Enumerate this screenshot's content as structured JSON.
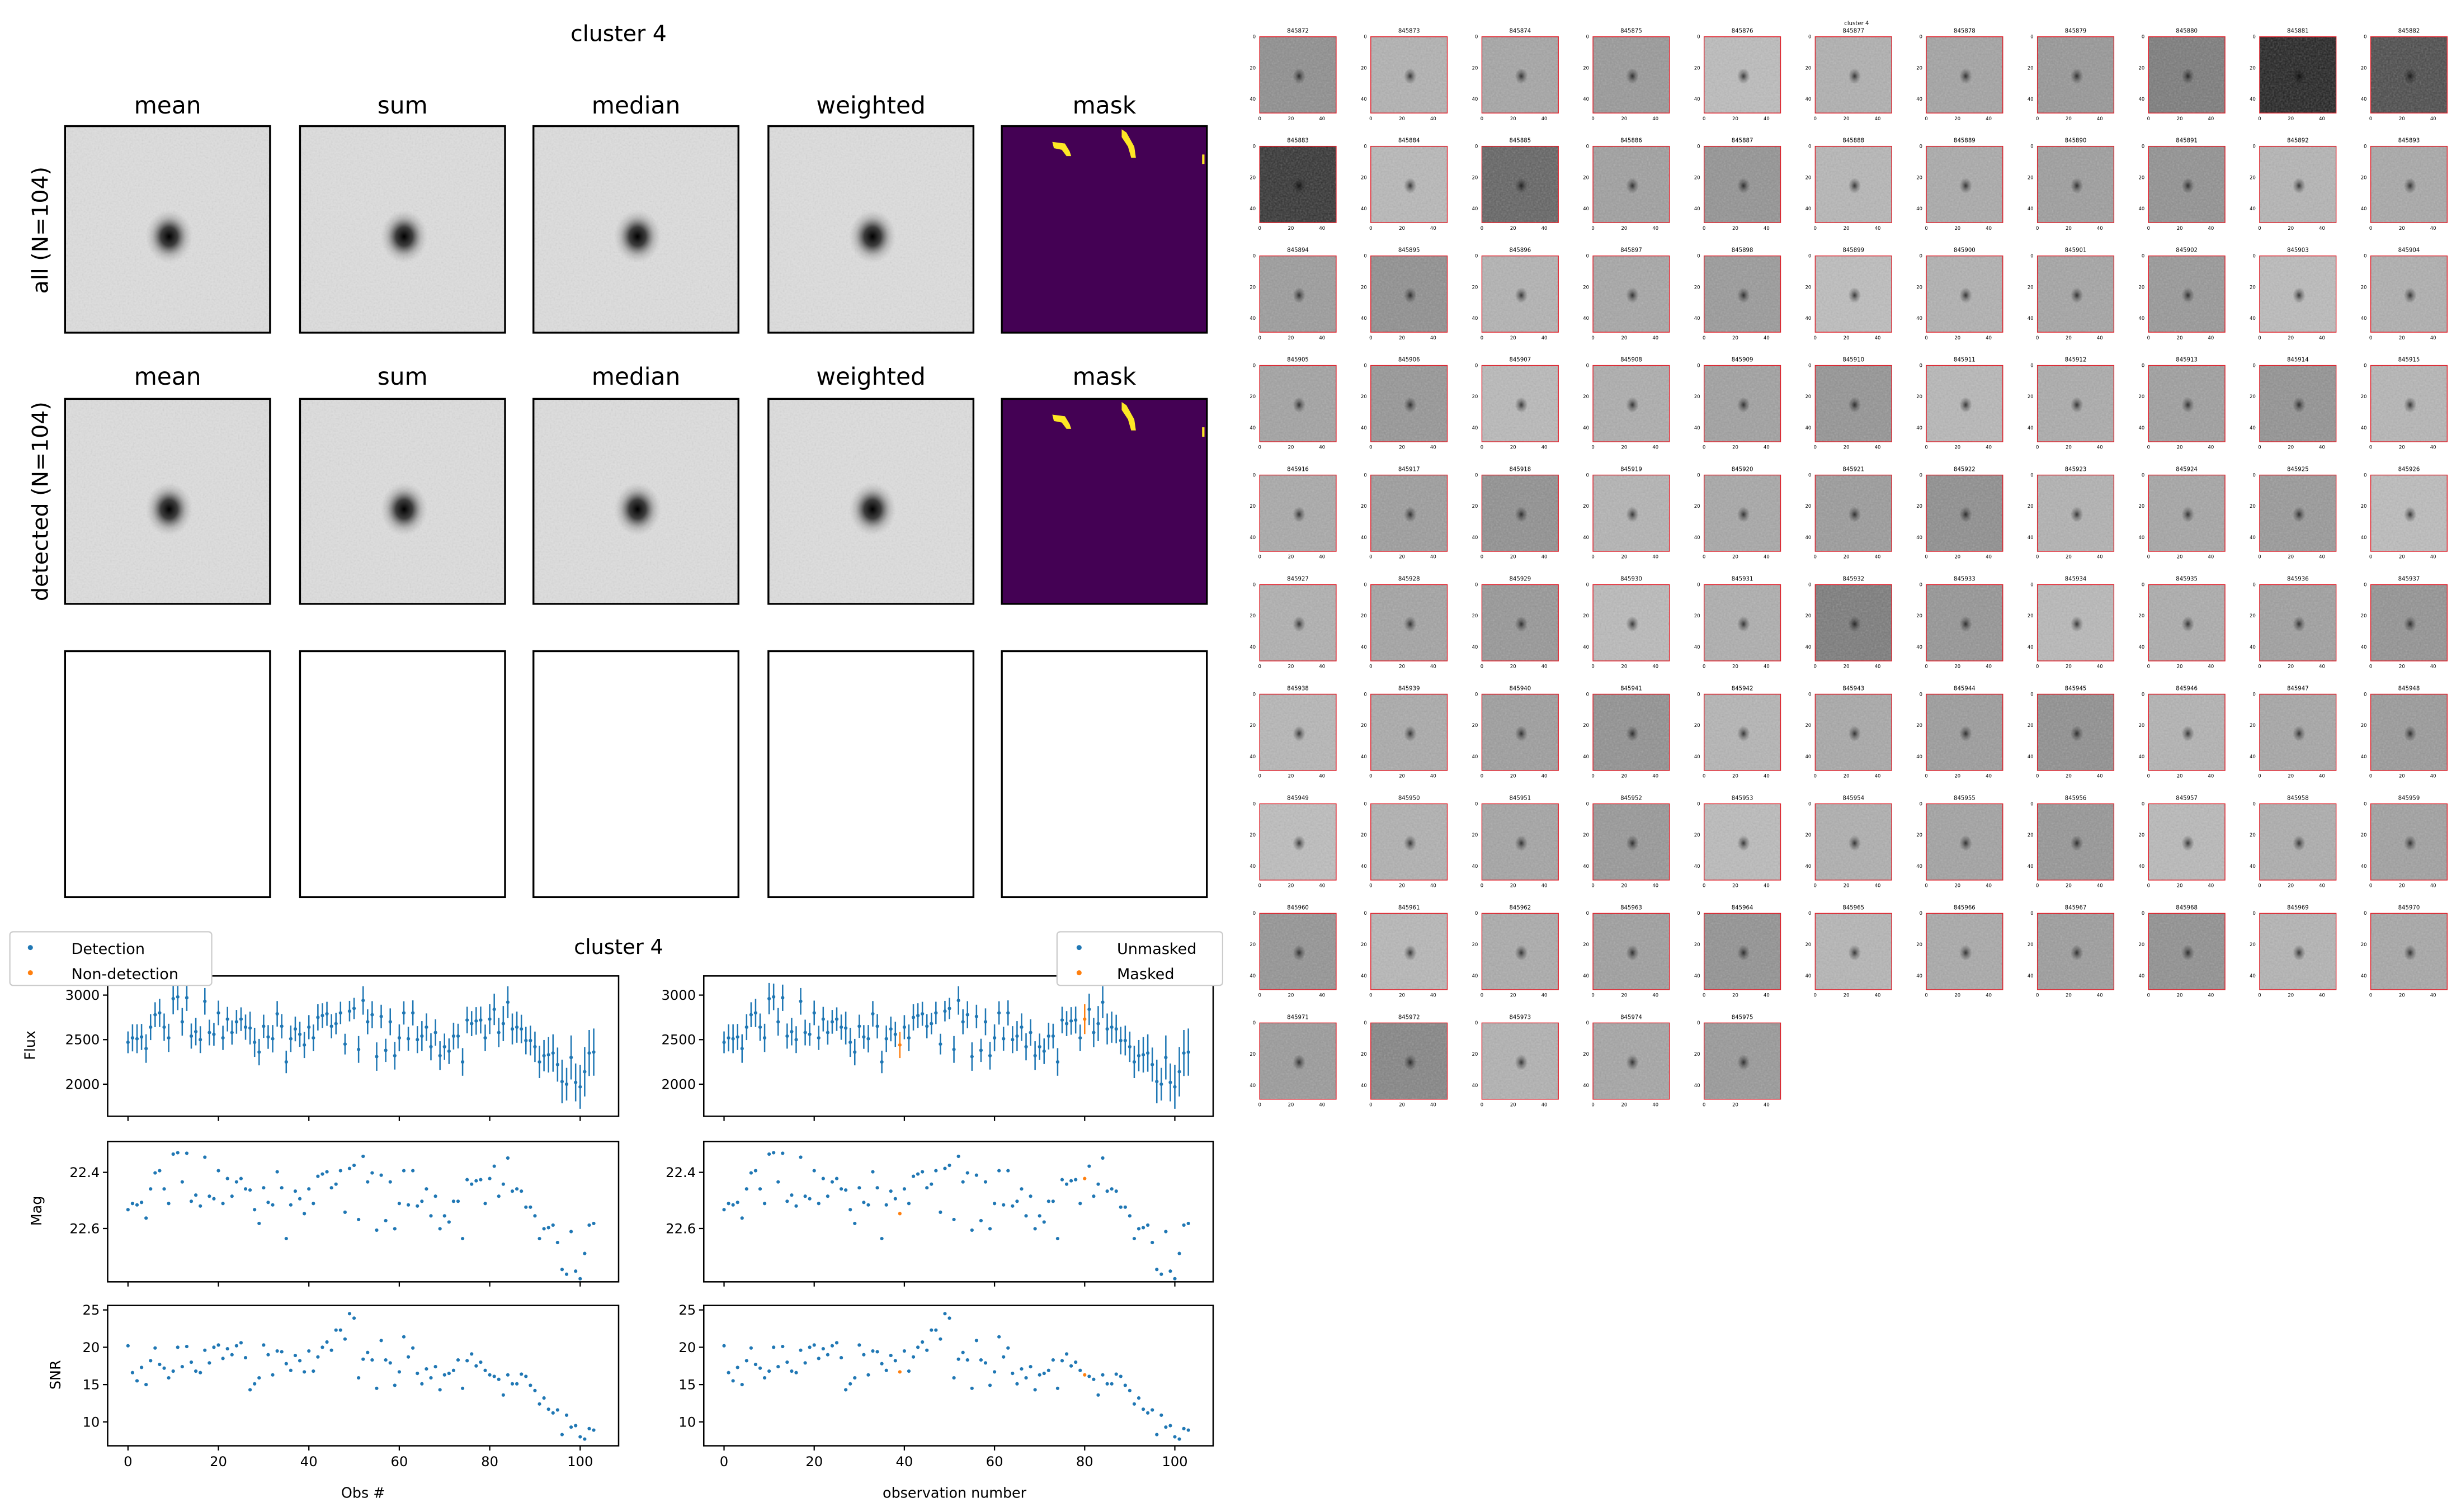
{
  "stack_panel": {
    "title": "cluster 4",
    "column_titles": [
      "mean",
      "sum",
      "median",
      "weighted",
      "mask"
    ],
    "row_labels": [
      "all (N=104)",
      "detected (N=104)"
    ]
  },
  "lightcurve": {
    "title": "cluster 4",
    "legend_left": [
      "Detection",
      "Non-detection"
    ],
    "legend_right": [
      "Unmasked",
      "Masked"
    ],
    "ylabels": [
      "Flux",
      "Mag",
      "SNR"
    ],
    "xlabel_left": "Obs #",
    "xlabel_right": "observation number"
  },
  "thumbnails": {
    "title": "cluster 4",
    "axis_ticks": [
      "0",
      "20",
      "40"
    ],
    "ids": [
      "845872",
      "845873",
      "845874",
      "845875",
      "845876",
      "845877",
      "845878",
      "845879",
      "845880",
      "845881",
      "845882",
      "845883",
      "845884",
      "845885",
      "845886",
      "845887",
      "845888",
      "845889",
      "845890",
      "845891",
      "845892",
      "845893",
      "845894",
      "845895",
      "845896",
      "845897",
      "845898",
      "845899",
      "845900",
      "845901",
      "845902",
      "845903",
      "845904",
      "845905",
      "845906",
      "845907",
      "845908",
      "845909",
      "845910",
      "845911",
      "845912",
      "845913",
      "845914",
      "845915",
      "845916",
      "845917",
      "845918",
      "845919",
      "845920",
      "845921",
      "845922",
      "845923",
      "845924",
      "845925",
      "845926",
      "845927",
      "845928",
      "845929",
      "845930",
      "845931",
      "845932",
      "845933",
      "845934",
      "845935",
      "845936",
      "845937",
      "845938",
      "845939",
      "845940",
      "845941",
      "845942",
      "845943",
      "845944",
      "845945",
      "845946",
      "845947",
      "845948",
      "845949",
      "845950",
      "845951",
      "845952",
      "845953",
      "845954",
      "845955",
      "845956",
      "845957",
      "845958",
      "845959",
      "845960",
      "845961",
      "845962",
      "845963",
      "845964",
      "845965",
      "845966",
      "845967",
      "845968",
      "845969",
      "845970",
      "845971",
      "845972",
      "845973",
      "845974",
      "845975"
    ]
  },
  "colors": {
    "unmasked": "#1f77b4",
    "masked": "#ff7f0e",
    "mask_bg": "#440154",
    "mask_fg": "#fde725",
    "thumb_frame": "#e0202a"
  },
  "chart_data": {
    "type": "scatter",
    "x_ticks": [
      "0",
      "20",
      "40",
      "60",
      "80",
      "100"
    ],
    "xlim": [
      -4.5,
      108.5
    ],
    "masked_indices": [
      39,
      80
    ],
    "panels": [
      {
        "name": "flux",
        "ylabel": "Flux",
        "ylim": [
          1640,
          3215
        ],
        "inverted": false,
        "y_ticks": [
          "2000",
          "2500",
          "3000"
        ],
        "errorbars": true
      },
      {
        "name": "mag",
        "ylabel": "Mag",
        "ylim": [
          22.79,
          22.29
        ],
        "inverted": true,
        "y_ticks": [
          "22.4",
          "22.6"
        ],
        "errorbars": false
      },
      {
        "name": "snr",
        "ylabel": "SNR",
        "ylim": [
          6.8,
          25.6
        ],
        "inverted": false,
        "y_ticks": [
          "10",
          "15",
          "20",
          "25"
        ],
        "errorbars": false
      }
    ],
    "flux": [
      2470,
      2520,
      2510,
      2530,
      2400,
      2640,
      2780,
      2800,
      2640,
      2520,
      2960,
      2980,
      2700,
      2970,
      2540,
      2590,
      2500,
      2930,
      2580,
      2560,
      2800,
      2520,
      2730,
      2580,
      2700,
      2730,
      2640,
      2630,
      2470,
      2360,
      2650,
      2530,
      2510,
      2790,
      2650,
      2250,
      2510,
      2620,
      2560,
      2440,
      2640,
      2520,
      2750,
      2770,
      2790,
      2650,
      2680,
      2800,
      2450,
      2820,
      2850,
      2390,
      2940,
      2700,
      2780,
      2310,
      2760,
      2380,
      2700,
      2320,
      2520,
      2800,
      2510,
      2800,
      2500,
      2540,
      2640,
      2420,
      2580,
      2320,
      2420,
      2370,
      2540,
      2540,
      2250,
      2720,
      2680,
      2710,
      2720,
      2520,
      2730,
      2840,
      2580,
      2680,
      2920,
      2620,
      2640,
      2620,
      2490,
      2490,
      2420,
      2250,
      2320,
      2330,
      2350,
      2220,
      2030,
      2000,
      2300,
      2020,
      1970,
      2140,
      2350,
      2360
    ],
    "snr": [
      20.2,
      16.6,
      15.5,
      17.3,
      15.0,
      18.2,
      19.9,
      17.7,
      17.2,
      15.9,
      16.8,
      20.0,
      17.4,
      20.1,
      18.0,
      16.8,
      16.6,
      19.6,
      17.9,
      20.0,
      20.3,
      18.5,
      19.8,
      19.0,
      20.2,
      20.6,
      18.6,
      14.3,
      15.1,
      15.9,
      20.3,
      19.0,
      16.3,
      19.5,
      19.4,
      17.8,
      16.9,
      18.9,
      18.2,
      16.7,
      19.5,
      16.8,
      18.7,
      20.0,
      20.7,
      19.6,
      22.3,
      22.3,
      21.1,
      24.5,
      23.9,
      15.9,
      18.4,
      19.3,
      18.3,
      14.5,
      20.9,
      18.3,
      17.9,
      14.9,
      16.7,
      21.4,
      18.7,
      19.9,
      16.5,
      15.1,
      17.1,
      15.9,
      17.4,
      14.3,
      16.3,
      16.5,
      16.9,
      18.3,
      14.5,
      18.2,
      19.1,
      17.5,
      18.0,
      16.9,
      16.3,
      16.1,
      15.7,
      13.6,
      16.3,
      15.1,
      15.1,
      16.4,
      16.1,
      14.9,
      14.2,
      12.4,
      13.2,
      11.7,
      11.2,
      11.6,
      8.3,
      10.9,
      9.3,
      9.5,
      8.0,
      7.7,
      9.1,
      8.9
    ],
    "mag": [
      22.533,
      22.511,
      22.516,
      22.507,
      22.563,
      22.459,
      22.402,
      22.394,
      22.459,
      22.511,
      22.335,
      22.33,
      22.434,
      22.332,
      22.503,
      22.481,
      22.52,
      22.346,
      22.485,
      22.494,
      22.394,
      22.511,
      22.422,
      22.485,
      22.434,
      22.422,
      22.459,
      22.463,
      22.533,
      22.582,
      22.455,
      22.507,
      22.516,
      22.398,
      22.455,
      22.636,
      22.516,
      22.467,
      22.494,
      22.547,
      22.459,
      22.511,
      22.414,
      22.406,
      22.398,
      22.455,
      22.442,
      22.394,
      22.542,
      22.386,
      22.375,
      22.568,
      22.343,
      22.434,
      22.402,
      22.606,
      22.41,
      22.572,
      22.434,
      22.601,
      22.511,
      22.394,
      22.516,
      22.394,
      22.52,
      22.503,
      22.459,
      22.555,
      22.485,
      22.601,
      22.555,
      22.577,
      22.503,
      22.503,
      22.636,
      22.426,
      22.442,
      22.43,
      22.426,
      22.511,
      22.422,
      22.378,
      22.485,
      22.442,
      22.349,
      22.467,
      22.459,
      22.467,
      22.524,
      22.524,
      22.555,
      22.636,
      22.601,
      22.597,
      22.588,
      22.65,
      22.746,
      22.763,
      22.611,
      22.752,
      22.779,
      22.689,
      22.588,
      22.582
    ]
  }
}
